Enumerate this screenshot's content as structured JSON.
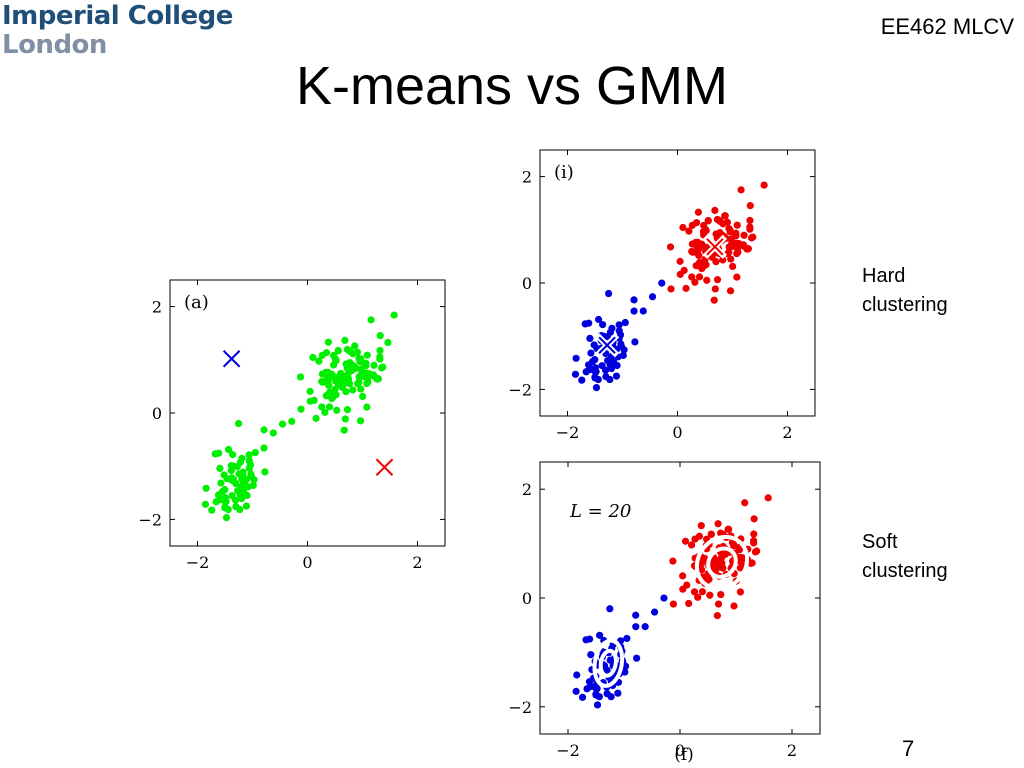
{
  "header": {
    "logo_line1": "Imperial College",
    "logo_line2": "London",
    "course": "EE462 MLCV"
  },
  "slide": {
    "title": "K-means vs GMM",
    "page_number": "7"
  },
  "labels": {
    "hard_line1": "Hard",
    "hard_line2": "clustering",
    "soft_line1": "Soft",
    "soft_line2": "clustering"
  },
  "colors": {
    "green": "#00ee00",
    "blue": "#0000dd",
    "red": "#ee0000",
    "logo_blue": "#1f4e79"
  },
  "chart_data": [
    {
      "type": "scatter",
      "panel_label": "(a)",
      "xlim": [
        -2.5,
        2.5
      ],
      "ylim": [
        -2.5,
        2.5
      ],
      "xticks": [
        "−2",
        "0",
        "2"
      ],
      "yticks": [
        "−2",
        "0",
        "2"
      ],
      "series": [
        {
          "color": "green",
          "clusters": [
            {
              "cx": -1.3,
              "cy": -1.25,
              "sx": 0.22,
              "sy": 0.38,
              "n": 70
            },
            {
              "cx": 0.75,
              "cy": 0.7,
              "sx": 0.38,
              "sy": 0.35,
              "n": 110
            }
          ]
        }
      ],
      "centroids": [
        {
          "x": -1.38,
          "y": 1.02,
          "color": "blue"
        },
        {
          "x": 1.4,
          "y": -1.02,
          "color": "red"
        }
      ]
    },
    {
      "type": "scatter",
      "panel_label": "(i)",
      "xlim": [
        -2.5,
        2.5
      ],
      "ylim": [
        -2.5,
        2.5
      ],
      "xticks": [
        "−2",
        "0",
        "2"
      ],
      "yticks": [
        "−2",
        "0",
        "2"
      ],
      "series": [
        {
          "color": "blue",
          "clusters": [
            {
              "cx": -1.3,
              "cy": -1.25,
              "sx": 0.22,
              "sy": 0.38,
              "n": 70
            }
          ]
        },
        {
          "color": "red",
          "clusters": [
            {
              "cx": 0.75,
              "cy": 0.7,
              "sx": 0.38,
              "sy": 0.35,
              "n": 110
            }
          ]
        }
      ],
      "centroids": [
        {
          "x": -1.28,
          "y": -1.17,
          "color": "blue"
        },
        {
          "x": 0.68,
          "y": 0.68,
          "color": "red"
        }
      ]
    },
    {
      "type": "scatter",
      "panel_label": "(f)",
      "annotation": "L = 20",
      "xlim": [
        -2.5,
        2.5
      ],
      "ylim": [
        -2.5,
        2.5
      ],
      "xticks": [
        "−2",
        "0",
        "2"
      ],
      "yticks": [
        "−2",
        "0",
        "2"
      ],
      "series": [
        {
          "color": "blue",
          "clusters": [
            {
              "cx": -1.3,
              "cy": -1.25,
              "sx": 0.22,
              "sy": 0.38,
              "n": 70
            }
          ]
        },
        {
          "color": "red",
          "clusters": [
            {
              "cx": 0.75,
              "cy": 0.7,
              "sx": 0.38,
              "sy": 0.35,
              "n": 110
            }
          ]
        }
      ],
      "ellipses": [
        {
          "cx": -1.28,
          "cy": -1.2,
          "rx": 0.24,
          "ry": 0.42,
          "angle": 10,
          "color": "blue"
        },
        {
          "cx": 0.75,
          "cy": 0.65,
          "rx": 0.42,
          "ry": 0.5,
          "angle": 40,
          "color": "red"
        }
      ]
    }
  ]
}
